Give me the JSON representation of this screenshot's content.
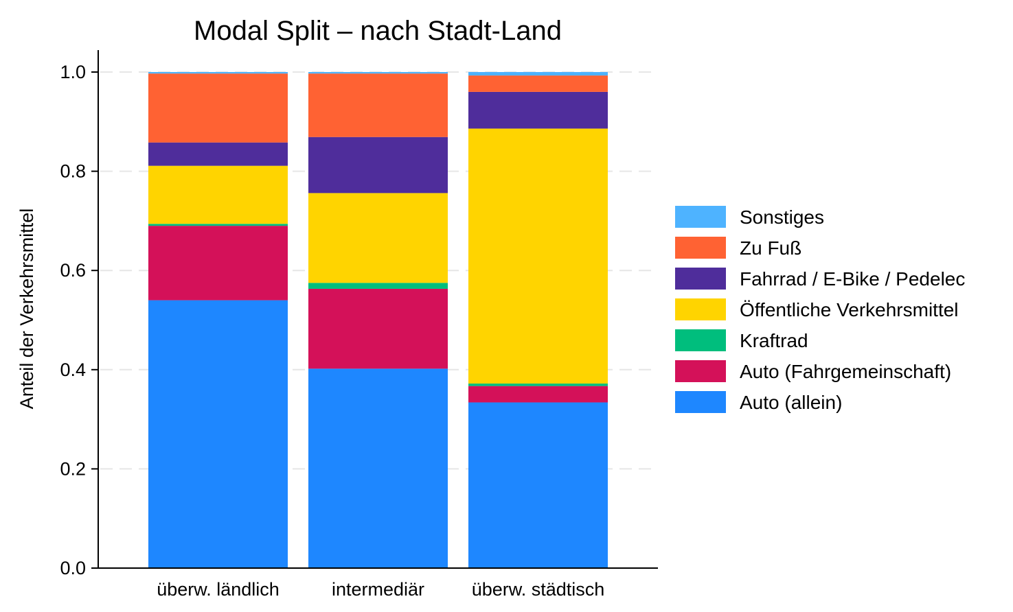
{
  "chart_data": {
    "type": "bar",
    "stacked": true,
    "title": "Modal Split – nach Stadt-Land",
    "xlabel": "",
    "ylabel": "Anteil der Verkehrsmittel",
    "ylim": [
      0,
      1.03
    ],
    "yticks": [
      0.0,
      0.2,
      0.4,
      0.6,
      0.8,
      1.0
    ],
    "ytick_labels": [
      "0.0",
      "0.2",
      "0.4",
      "0.6",
      "0.8",
      "1.0"
    ],
    "grid": "horizontal dashed",
    "legend_position": "right",
    "categories": [
      "überw. ländlich",
      "intermediär",
      "überw. städtisch"
    ],
    "series": [
      {
        "name": "Auto (allein)",
        "color": "#1E87FF",
        "values": [
          0.54,
          0.402,
          0.334
        ]
      },
      {
        "name": "Auto (Fahrgemeinschaft)",
        "color": "#D41159",
        "values": [
          0.15,
          0.161,
          0.033
        ]
      },
      {
        "name": "Kraftrad",
        "color": "#00BE7D",
        "values": [
          0.004,
          0.012,
          0.005
        ]
      },
      {
        "name": "Öffentliche Verkehrsmittel",
        "color": "#FFD400",
        "values": [
          0.117,
          0.181,
          0.514
        ]
      },
      {
        "name": "Fahrrad / E-Bike / Pedelec",
        "color": "#4F2D9B",
        "values": [
          0.047,
          0.113,
          0.074
        ]
      },
      {
        "name": "Zu Fuß",
        "color": "#FF6233",
        "values": [
          0.139,
          0.128,
          0.033
        ]
      },
      {
        "name": "Sonstiges",
        "color": "#4EB3FF",
        "values": [
          0.003,
          0.003,
          0.007
        ]
      }
    ],
    "legend_order": [
      "Sonstiges",
      "Zu Fuß",
      "Fahrrad / E-Bike / Pedelec",
      "Öffentliche Verkehrsmittel",
      "Kraftrad",
      "Auto (Fahrgemeinschaft)",
      "Auto (allein)"
    ]
  }
}
